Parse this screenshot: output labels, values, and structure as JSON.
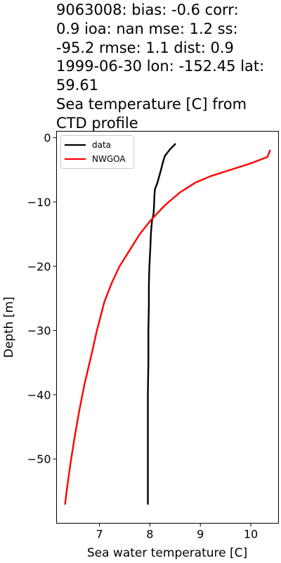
{
  "chart_data": {
    "type": "line",
    "title_lines": [
      "9063008: bias: -0.6  corr:",
      "0.9  ioa: nan  mse: 1.2  ss:",
      "-95.2  rmse: 1.1  dist: 0.9",
      "1999-06-30 lon: -152.45 lat:",
      "59.61",
      "Sea temperature [C] from",
      "CTD profile"
    ],
    "xlabel": "Sea water temperature [C]",
    "ylabel": "Depth [m]",
    "xlim": [
      6.15,
      10.55
    ],
    "ylim": [
      -60,
      1
    ],
    "xticks": [
      7,
      8,
      9,
      10
    ],
    "yticks": [
      0,
      -10,
      -20,
      -30,
      -40,
      -50
    ],
    "xtick_labels": [
      "7",
      "8",
      "9",
      "10"
    ],
    "ytick_labels": [
      "0",
      "−10",
      "−20",
      "−30",
      "−40",
      "−50"
    ],
    "legend": {
      "placement": "upper left",
      "entries": [
        "data",
        "NWGOA"
      ]
    },
    "series": [
      {
        "name": "data",
        "color": "#000000",
        "x": [
          8.5,
          8.4,
          8.3,
          8.27,
          8.22,
          8.15,
          8.1,
          8.09,
          8.08,
          8.07,
          8.04,
          8.02,
          8.01,
          7.99,
          7.98,
          7.98,
          7.97,
          7.97,
          7.96,
          7.96,
          7.96,
          7.96
        ],
        "y": [
          -1,
          -1.8,
          -2.8,
          -3.5,
          -5,
          -7,
          -8,
          -9,
          -11,
          -12,
          -13,
          -15,
          -17,
          -20,
          -23,
          -26,
          -30,
          -35,
          -40,
          -45,
          -50,
          -57
        ]
      },
      {
        "name": "NWGOA",
        "color": "#ff0000",
        "x": [
          10.38,
          10.33,
          10.0,
          9.6,
          9.2,
          8.9,
          8.6,
          8.3,
          8.0,
          7.8,
          7.6,
          7.4,
          7.25,
          7.1,
          6.95,
          6.85,
          6.7,
          6.6,
          6.5,
          6.42,
          6.35,
          6.32
        ],
        "y": [
          -2,
          -3,
          -4,
          -5,
          -6,
          -7,
          -8.5,
          -10.5,
          -13,
          -15,
          -17.5,
          -20,
          -22.5,
          -25.5,
          -30,
          -33.5,
          -38.5,
          -42.5,
          -47,
          -51,
          -55,
          -57
        ]
      }
    ]
  }
}
